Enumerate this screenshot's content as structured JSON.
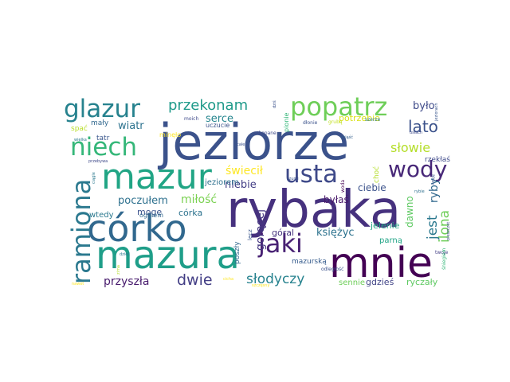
{
  "wordcloud": {
    "palette": "viridis",
    "words": [
      {
        "text": "jeziorze",
        "color": "#3b528b"
      },
      {
        "text": "rybaka",
        "color": "#46317e"
      },
      {
        "text": "mnie",
        "color": "#440154"
      },
      {
        "text": "mazura",
        "color": "#1f9e89"
      },
      {
        "text": "córko",
        "color": "#31688e"
      },
      {
        "text": "mazur",
        "color": "#21a585"
      },
      {
        "text": "popatrz",
        "color": "#6ece58"
      },
      {
        "text": "glazur",
        "color": "#26828e"
      },
      {
        "text": "niech",
        "color": "#35b779"
      },
      {
        "text": "usta",
        "color": "#3e4989"
      },
      {
        "text": "wody",
        "color": "#482878"
      },
      {
        "text": "ramiona",
        "color": "#2a788e"
      },
      {
        "text": "jaki",
        "color": "#482173"
      },
      {
        "text": "przekonam",
        "color": "#1f9a8a"
      },
      {
        "text": "lato",
        "color": "#3b528b"
      },
      {
        "text": "słowie",
        "color": "#b5de2b"
      },
      {
        "text": "było",
        "color": "#3e4a89"
      },
      {
        "text": "ilona",
        "color": "#6ece58"
      },
      {
        "text": "dwie",
        "color": "#433e85"
      },
      {
        "text": "słodyczy",
        "color": "#26828e"
      },
      {
        "text": "jest",
        "color": "#2a788e"
      },
      {
        "text": "ryby",
        "color": "#31688e"
      },
      {
        "text": "przyszła",
        "color": "#481b6d"
      },
      {
        "text": "gorącej",
        "color": "#453781"
      },
      {
        "text": "miłość",
        "color": "#7ad151"
      },
      {
        "text": "wiatr",
        "color": "#2c728e"
      },
      {
        "text": "serce",
        "color": "#25858e"
      },
      {
        "text": "niebie",
        "color": "#433e85"
      },
      {
        "text": "poczułem",
        "color": "#2d708e"
      },
      {
        "text": "księżyc",
        "color": "#2c728e"
      },
      {
        "text": "świecił",
        "color": "#fde725"
      },
      {
        "text": "ciebie",
        "color": "#3b528b"
      },
      {
        "text": "byłaś",
        "color": "#48186a"
      },
      {
        "text": "dawno",
        "color": "#5ec962"
      },
      {
        "text": "jelenie",
        "color": "#22a884"
      },
      {
        "text": "góral",
        "color": "#46337e"
      },
      {
        "text": "córka",
        "color": "#2c728e"
      },
      {
        "text": "mogę",
        "color": "#3b528b"
      },
      {
        "text": "wtedy",
        "color": "#2a788e"
      },
      {
        "text": "gdzieś",
        "color": "#414487"
      },
      {
        "text": "sennie",
        "color": "#6ece58"
      },
      {
        "text": "ryczały",
        "color": "#5ec962"
      },
      {
        "text": "parną",
        "color": "#20a486"
      },
      {
        "text": "mały",
        "color": "#31688e"
      },
      {
        "text": "tatr",
        "color": "#39568c"
      },
      {
        "text": "spać",
        "color": "#b8de29"
      },
      {
        "text": "potrzebie",
        "color": "#dae319"
      },
      {
        "text": "jeziorem",
        "color": "#2d708e"
      },
      {
        "text": "poszły",
        "color": "#31688e"
      },
      {
        "text": "ogniem",
        "color": "#31688e"
      },
      {
        "text": "rzekłaś",
        "color": "#3e4989"
      },
      {
        "text": "mazurską",
        "color": "#365c8d"
      },
      {
        "text": "choć",
        "color": "#b5de2b"
      },
      {
        "text": "uczucie",
        "color": "#3b528b"
      },
      {
        "text": "minęło",
        "color": "#fde725"
      },
      {
        "text": "pionie",
        "color": "#35b779"
      },
      {
        "text": "dłonie",
        "color": "#3b528b"
      },
      {
        "text": "szumi",
        "color": "#3b528b"
      },
      {
        "text": "zakopane",
        "color": "#3e4a89"
      },
      {
        "text": "grubą",
        "color": "#c2df23"
      },
      {
        "text": "szerze",
        "color": "#2a788e"
      },
      {
        "text": "lecz",
        "color": "#39568c"
      },
      {
        "text": "odległość",
        "color": "#3b528b"
      },
      {
        "text": "woda",
        "color": "#440154"
      },
      {
        "text": "jeziorach",
        "color": "#39568c"
      },
      {
        "text": "usłach",
        "color": "#3e4a89"
      },
      {
        "text": "czuję",
        "color": "#3b528b"
      },
      {
        "text": "rybie",
        "color": "#2d708e"
      },
      {
        "text": "twoje",
        "color": "#433e85"
      },
      {
        "text": "śniegiem",
        "color": "#35b779"
      },
      {
        "text": "zsiąść",
        "color": "#355f8d"
      },
      {
        "text": "moich",
        "color": "#3e4989"
      },
      {
        "text": "dziś",
        "color": "#3b528b"
      },
      {
        "text": "ciągle",
        "color": "#2a788e"
      },
      {
        "text": "wielka",
        "color": "#2a788e"
      },
      {
        "text": "przebywa",
        "color": "#3e4989"
      },
      {
        "text": "dzieli",
        "color": "#2a788e"
      },
      {
        "text": "zima",
        "color": "#b5de2b"
      },
      {
        "text": "nawet",
        "color": "#fde725"
      },
      {
        "text": "cicha",
        "color": "#fde725"
      },
      {
        "text": "szczęsny",
        "color": "#fde725"
      },
      {
        "text": "całe",
        "color": "#3b528b"
      },
      {
        "text": "pieszczot",
        "color": "#3e4989"
      }
    ]
  }
}
